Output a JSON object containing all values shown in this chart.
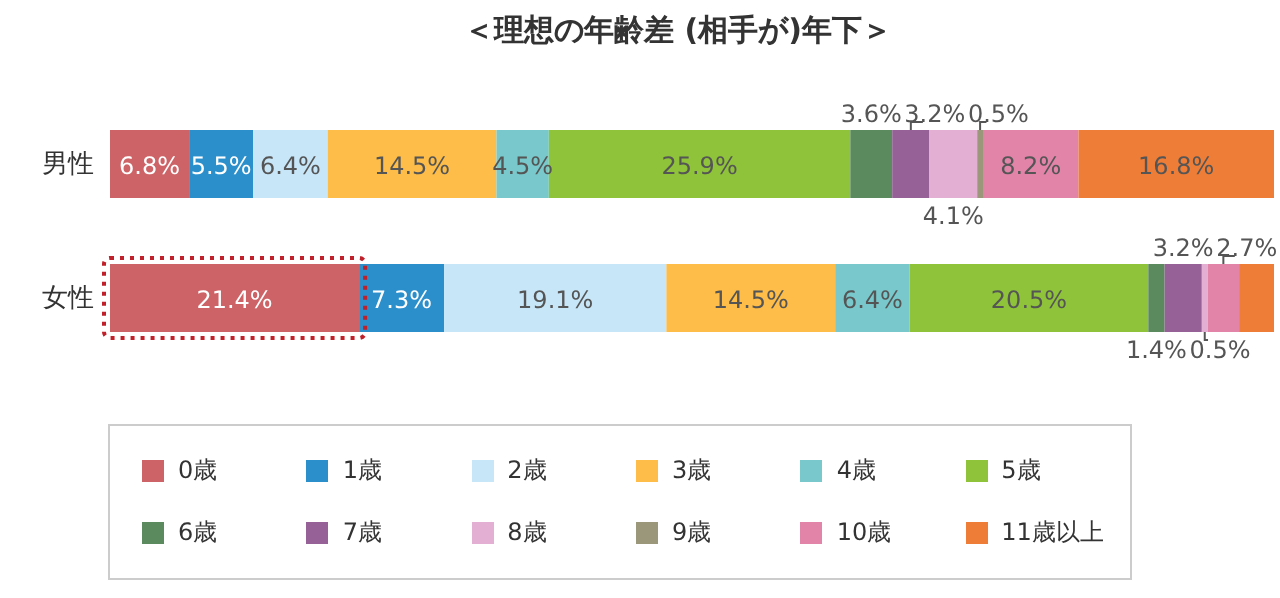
{
  "chart_data": {
    "type": "bar",
    "orientation": "horizontal",
    "stacked": true,
    "title": "＜理想の年齢差 (相手が)年下＞",
    "categories": [
      "男性",
      "女性"
    ],
    "legend": "bottom",
    "series": [
      {
        "name": "0歳",
        "color": "#cd6367",
        "values": [
          6.8,
          21.4
        ],
        "value_labels": [
          "6.8%",
          "21.4%"
        ]
      },
      {
        "name": "1歳",
        "color": "#2b8fcb",
        "values": [
          5.5,
          7.3
        ],
        "value_labels": [
          "5.5%",
          "7.3%"
        ]
      },
      {
        "name": "2歳",
        "color": "#c7e6f8",
        "values": [
          6.4,
          19.1
        ],
        "value_labels": [
          "6.4%",
          "19.1%"
        ]
      },
      {
        "name": "3歳",
        "color": "#fdbd48",
        "values": [
          14.5,
          14.5
        ],
        "value_labels": [
          "14.5%",
          "14.5%"
        ]
      },
      {
        "name": "4歳",
        "color": "#79c9cc",
        "values": [
          4.5,
          6.4
        ],
        "value_labels": [
          "4.5%",
          "6.4%"
        ]
      },
      {
        "name": "5歳",
        "color": "#8fc43a",
        "values": [
          25.9,
          20.5
        ],
        "value_labels": [
          "25.9%",
          "20.5%"
        ]
      },
      {
        "name": "6歳",
        "color": "#5a8a5e",
        "values": [
          3.6,
          1.4
        ],
        "value_labels": [
          "3.6%",
          "1.4%"
        ]
      },
      {
        "name": "7歳",
        "color": "#956197",
        "values": [
          3.2,
          3.2
        ],
        "value_labels": [
          "3.2%",
          "3.2%"
        ]
      },
      {
        "name": "8歳",
        "color": "#e3b0d3",
        "values": [
          4.1,
          0.5
        ],
        "value_labels": [
          "4.1%",
          "0.5%"
        ]
      },
      {
        "name": "9歳",
        "color": "#9b977a",
        "values": [
          0.5,
          null
        ],
        "value_labels": [
          "0.5%",
          null
        ]
      },
      {
        "name": "10歳",
        "color": "#e283a8",
        "values": [
          8.2,
          2.7
        ],
        "value_labels": [
          "8.2%",
          "2.7%"
        ]
      },
      {
        "name": "11歳以上",
        "color": "#ee7d37",
        "values": [
          16.8,
          3.0
        ],
        "value_labels": [
          "16.8%",
          null
        ]
      }
    ]
  }
}
